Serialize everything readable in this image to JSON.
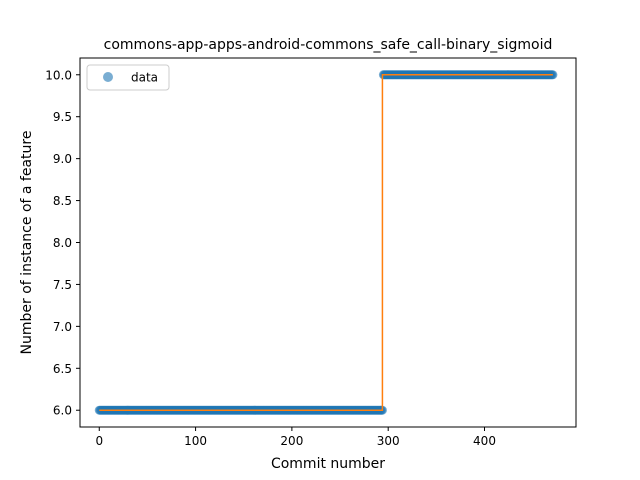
{
  "chart_data": {
    "type": "scatter",
    "title": "commons-app-apps-android-commons_safe_call-binary_sigmoid",
    "xlabel": "Commit number",
    "ylabel": "Number of instance of a feature",
    "xlim": [
      -20,
      495
    ],
    "ylim": [
      5.8,
      10.2
    ],
    "x_ticks": [
      0,
      100,
      200,
      300,
      400
    ],
    "y_ticks": [
      6.0,
      6.5,
      7.0,
      7.5,
      8.0,
      8.5,
      9.0,
      9.5,
      10.0
    ],
    "y_tick_labels": [
      "6.0",
      "6.5",
      "7.0",
      "7.5",
      "8.0",
      "8.5",
      "9.0",
      "9.5",
      "10.0"
    ],
    "grid": false,
    "legend_position": "top-left",
    "series": [
      {
        "name": "data",
        "kind": "points",
        "color": "#1f77b4",
        "segments": [
          {
            "x_start": 0,
            "x_end": 294,
            "y": 6.0
          },
          {
            "x_start": 295,
            "x_end": 471,
            "y": 10.0
          }
        ]
      },
      {
        "kind": "line",
        "color": "#ff7f0e",
        "x": [
          0,
          294,
          294,
          471
        ],
        "y": [
          6.0,
          6.0,
          10.0,
          10.0
        ]
      }
    ]
  }
}
